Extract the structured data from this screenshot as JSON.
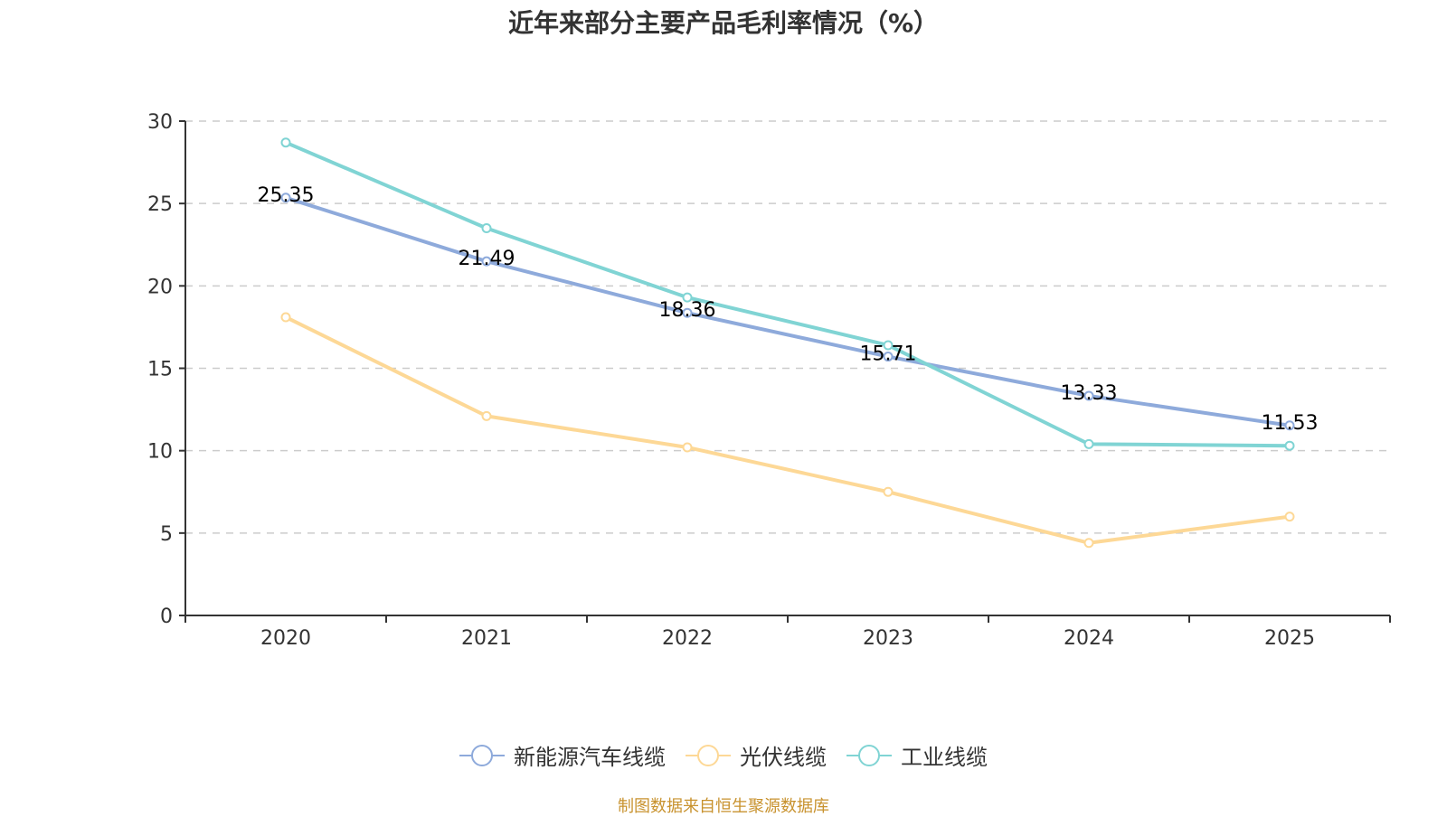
{
  "chart_data": {
    "type": "line",
    "title": "近年来部分主要产品毛利率情况（%）",
    "xlabel": "",
    "ylabel": "",
    "categories": [
      "2020",
      "2021",
      "2022",
      "2023",
      "2024",
      "2025"
    ],
    "ylim": [
      0,
      30
    ],
    "yticks": [
      0,
      5,
      10,
      15,
      20,
      25,
      30
    ],
    "grid": true,
    "legend_position": "bottom",
    "series": [
      {
        "name": "新能源汽车线缆",
        "color": "#8eaadb",
        "values": [
          25.35,
          21.49,
          18.36,
          15.71,
          13.33,
          11.53
        ],
        "show_labels": true
      },
      {
        "name": "光伏线缆",
        "color": "#fdd896",
        "values": [
          18.1,
          12.1,
          10.2,
          7.5,
          4.4,
          6.0
        ],
        "show_labels": false
      },
      {
        "name": "工业线缆",
        "color": "#80d4d4",
        "values": [
          28.7,
          23.5,
          19.3,
          16.4,
          10.4,
          10.3
        ],
        "show_labels": false
      }
    ]
  },
  "source_note": "制图数据来自恒生聚源数据库"
}
